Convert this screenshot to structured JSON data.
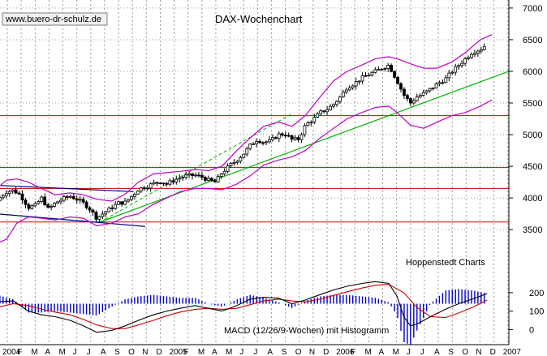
{
  "watermark": "www.buero-dr-schulz.de",
  "chart_data": {
    "type": "candlestick",
    "title": "DAX-Wochenchart",
    "source_label": "Hoppenstedt Charts",
    "y_axis": {
      "ticks": [
        3500,
        4000,
        4500,
        5000,
        5500,
        6000,
        6500,
        7000
      ],
      "labels": [
        "3500",
        "4000",
        "4500",
        "5000",
        "5500",
        "6000",
        "6500",
        "7000"
      ],
      "range": [
        2900,
        7050
      ]
    },
    "x_axis": {
      "range": [
        2004.0,
        2007.05
      ],
      "months": [
        {
          "t": 2004.0,
          "label": "2004"
        },
        {
          "t": 2004.083,
          "label": "F"
        },
        {
          "t": 2004.167,
          "label": "M"
        },
        {
          "t": 2004.25,
          "label": "A"
        },
        {
          "t": 2004.333,
          "label": "M"
        },
        {
          "t": 2004.417,
          "label": "J"
        },
        {
          "t": 2004.5,
          "label": "J"
        },
        {
          "t": 2004.583,
          "label": "A"
        },
        {
          "t": 2004.667,
          "label": "S"
        },
        {
          "t": 2004.75,
          "label": "O"
        },
        {
          "t": 2004.833,
          "label": "N"
        },
        {
          "t": 2004.917,
          "label": "D"
        },
        {
          "t": 2005.0,
          "label": "2005"
        },
        {
          "t": 2005.083,
          "label": "F"
        },
        {
          "t": 2005.167,
          "label": "M"
        },
        {
          "t": 2005.25,
          "label": "A"
        },
        {
          "t": 2005.333,
          "label": "M"
        },
        {
          "t": 2005.417,
          "label": "J"
        },
        {
          "t": 2005.5,
          "label": "J"
        },
        {
          "t": 2005.583,
          "label": "A"
        },
        {
          "t": 2005.667,
          "label": "S"
        },
        {
          "t": 2005.75,
          "label": "O"
        },
        {
          "t": 2005.833,
          "label": "N"
        },
        {
          "t": 2005.917,
          "label": "D"
        },
        {
          "t": 2006.0,
          "label": "2006"
        },
        {
          "t": 2006.083,
          "label": "F"
        },
        {
          "t": 2006.167,
          "label": "M"
        },
        {
          "t": 2006.25,
          "label": "A"
        },
        {
          "t": 2006.333,
          "label": "M"
        },
        {
          "t": 2006.417,
          "label": "J"
        },
        {
          "t": 2006.5,
          "label": "J"
        },
        {
          "t": 2006.583,
          "label": "A"
        },
        {
          "t": 2006.667,
          "label": "S"
        },
        {
          "t": 2006.75,
          "label": "O"
        },
        {
          "t": 2006.833,
          "label": "N"
        },
        {
          "t": 2006.917,
          "label": "D"
        },
        {
          "t": 2007.0,
          "label": "2007"
        }
      ]
    },
    "close_path": [
      [
        2003.98,
        3960
      ],
      [
        2004.04,
        4100
      ],
      [
        2004.08,
        4120
      ],
      [
        2004.12,
        4050
      ],
      [
        2004.17,
        3850
      ],
      [
        2004.21,
        3880
      ],
      [
        2004.25,
        4000
      ],
      [
        2004.29,
        3820
      ],
      [
        2004.33,
        3920
      ],
      [
        2004.38,
        3990
      ],
      [
        2004.42,
        4030
      ],
      [
        2004.46,
        3980
      ],
      [
        2004.5,
        3920
      ],
      [
        2004.54,
        3820
      ],
      [
        2004.58,
        3680
      ],
      [
        2004.62,
        3760
      ],
      [
        2004.67,
        3850
      ],
      [
        2004.71,
        3920
      ],
      [
        2004.75,
        3930
      ],
      [
        2004.79,
        4030
      ],
      [
        2004.83,
        4140
      ],
      [
        2004.88,
        4180
      ],
      [
        2004.92,
        4230
      ],
      [
        2004.96,
        4260
      ],
      [
        2005.0,
        4220
      ],
      [
        2005.04,
        4280
      ],
      [
        2005.08,
        4320
      ],
      [
        2005.12,
        4350
      ],
      [
        2005.17,
        4360
      ],
      [
        2005.21,
        4330
      ],
      [
        2005.25,
        4280
      ],
      [
        2005.29,
        4250
      ],
      [
        2005.33,
        4400
      ],
      [
        2005.38,
        4520
      ],
      [
        2005.42,
        4600
      ],
      [
        2005.46,
        4700
      ],
      [
        2005.5,
        4830
      ],
      [
        2005.54,
        4920
      ],
      [
        2005.58,
        4880
      ],
      [
        2005.62,
        4900
      ],
      [
        2005.67,
        5000
      ],
      [
        2005.71,
        5010
      ],
      [
        2005.75,
        4920
      ],
      [
        2005.79,
        4930
      ],
      [
        2005.83,
        5150
      ],
      [
        2005.88,
        5250
      ],
      [
        2005.92,
        5350
      ],
      [
        2005.96,
        5400
      ],
      [
        2006.0,
        5480
      ],
      [
        2006.04,
        5600
      ],
      [
        2006.08,
        5750
      ],
      [
        2006.12,
        5800
      ],
      [
        2006.17,
        5900
      ],
      [
        2006.21,
        5950
      ],
      [
        2006.25,
        6000
      ],
      [
        2006.29,
        6050
      ],
      [
        2006.33,
        6100
      ],
      [
        2006.38,
        5850
      ],
      [
        2006.42,
        5630
      ],
      [
        2006.46,
        5500
      ],
      [
        2006.5,
        5600
      ],
      [
        2006.54,
        5650
      ],
      [
        2006.58,
        5720
      ],
      [
        2006.62,
        5800
      ],
      [
        2006.67,
        5880
      ],
      [
        2006.71,
        6000
      ],
      [
        2006.75,
        6100
      ],
      [
        2006.79,
        6200
      ],
      [
        2006.83,
        6300
      ],
      [
        2006.88,
        6350
      ],
      [
        2006.92,
        6430
      ]
    ],
    "bollinger_upper": [
      [
        2003.98,
        4150
      ],
      [
        2004.04,
        4280
      ],
      [
        2004.1,
        4300
      ],
      [
        2004.17,
        4250
      ],
      [
        2004.25,
        4150
      ],
      [
        2004.33,
        4050
      ],
      [
        2004.42,
        4080
      ],
      [
        2004.5,
        4050
      ],
      [
        2004.58,
        3980
      ],
      [
        2004.67,
        3950
      ],
      [
        2004.75,
        4060
      ],
      [
        2004.83,
        4250
      ],
      [
        2004.92,
        4380
      ],
      [
        2005.0,
        4400
      ],
      [
        2005.08,
        4420
      ],
      [
        2005.17,
        4450
      ],
      [
        2005.25,
        4430
      ],
      [
        2005.33,
        4500
      ],
      [
        2005.42,
        4750
      ],
      [
        2005.5,
        4950
      ],
      [
        2005.58,
        5130
      ],
      [
        2005.67,
        5200
      ],
      [
        2005.75,
        5130
      ],
      [
        2005.83,
        5300
      ],
      [
        2005.92,
        5600
      ],
      [
        2006.0,
        5850
      ],
      [
        2006.08,
        6000
      ],
      [
        2006.17,
        6100
      ],
      [
        2006.25,
        6200
      ],
      [
        2006.33,
        6230
      ],
      [
        2006.38,
        6200
      ],
      [
        2006.46,
        6120
      ],
      [
        2006.54,
        6050
      ],
      [
        2006.62,
        6050
      ],
      [
        2006.71,
        6150
      ],
      [
        2006.79,
        6300
      ],
      [
        2006.88,
        6500
      ],
      [
        2006.95,
        6580
      ]
    ],
    "bollinger_lower": [
      [
        2003.98,
        3280
      ],
      [
        2004.04,
        3350
      ],
      [
        2004.1,
        3600
      ],
      [
        2004.17,
        3700
      ],
      [
        2004.25,
        3680
      ],
      [
        2004.33,
        3650
      ],
      [
        2004.42,
        3700
      ],
      [
        2004.5,
        3680
      ],
      [
        2004.58,
        3560
      ],
      [
        2004.67,
        3600
      ],
      [
        2004.75,
        3700
      ],
      [
        2004.83,
        3750
      ],
      [
        2004.92,
        3900
      ],
      [
        2005.0,
        4000
      ],
      [
        2005.08,
        4100
      ],
      [
        2005.17,
        4150
      ],
      [
        2005.25,
        4150
      ],
      [
        2005.33,
        4130
      ],
      [
        2005.42,
        4220
      ],
      [
        2005.5,
        4350
      ],
      [
        2005.58,
        4520
      ],
      [
        2005.67,
        4600
      ],
      [
        2005.75,
        4650
      ],
      [
        2005.83,
        4750
      ],
      [
        2005.92,
        4950
      ],
      [
        2006.0,
        5100
      ],
      [
        2006.08,
        5250
      ],
      [
        2006.17,
        5350
      ],
      [
        2006.25,
        5430
      ],
      [
        2006.33,
        5450
      ],
      [
        2006.38,
        5350
      ],
      [
        2006.46,
        5150
      ],
      [
        2006.54,
        5100
      ],
      [
        2006.62,
        5200
      ],
      [
        2006.71,
        5300
      ],
      [
        2006.79,
        5350
      ],
      [
        2006.88,
        5450
      ],
      [
        2006.95,
        5550
      ]
    ],
    "horizontal_levels": [
      3620,
      4150,
      4480,
      5300
    ],
    "green_trend": {
      "from": [
        2004.6,
        3620
      ],
      "to": [
        2007.05,
        6000
      ],
      "dashed_from": [
        2004.6,
        3620
      ],
      "dashed_to": [
        2005.75,
        5330
      ]
    },
    "blue_channel": {
      "upper": [
        [
          2003.98,
          4200
        ],
        [
          2004.8,
          4100
        ]
      ],
      "lower": [
        [
          2003.98,
          3750
        ],
        [
          2004.87,
          3550
        ]
      ]
    },
    "macd": {
      "label": "MACD (12/26/9-Wochen) mit Histogramm",
      "y_ticks": [
        0,
        100,
        200
      ],
      "y_labels": [
        "0",
        "100",
        "200"
      ],
      "y_range": [
        -60,
        270
      ],
      "macd_line": [
        [
          2003.98,
          150
        ],
        [
          2004.08,
          155
        ],
        [
          2004.17,
          100
        ],
        [
          2004.25,
          80
        ],
        [
          2004.33,
          70
        ],
        [
          2004.42,
          50
        ],
        [
          2004.5,
          20
        ],
        [
          2004.58,
          -15
        ],
        [
          2004.67,
          -5
        ],
        [
          2004.75,
          20
        ],
        [
          2004.83,
          50
        ],
        [
          2004.92,
          80
        ],
        [
          2005.0,
          100
        ],
        [
          2005.08,
          115
        ],
        [
          2005.17,
          130
        ],
        [
          2005.25,
          115
        ],
        [
          2005.33,
          100
        ],
        [
          2005.42,
          130
        ],
        [
          2005.5,
          165
        ],
        [
          2005.58,
          175
        ],
        [
          2005.67,
          170
        ],
        [
          2005.75,
          140
        ],
        [
          2005.83,
          160
        ],
        [
          2005.92,
          190
        ],
        [
          2006.0,
          215
        ],
        [
          2006.08,
          235
        ],
        [
          2006.17,
          250
        ],
        [
          2006.25,
          260
        ],
        [
          2006.33,
          250
        ],
        [
          2006.38,
          180
        ],
        [
          2006.42,
          70
        ],
        [
          2006.46,
          20
        ],
        [
          2006.5,
          30
        ],
        [
          2006.58,
          70
        ],
        [
          2006.67,
          110
        ],
        [
          2006.75,
          140
        ],
        [
          2006.83,
          165
        ],
        [
          2006.92,
          195
        ]
      ],
      "signal_line": [
        [
          2003.98,
          120
        ],
        [
          2004.08,
          140
        ],
        [
          2004.17,
          130
        ],
        [
          2004.25,
          110
        ],
        [
          2004.33,
          95
        ],
        [
          2004.42,
          80
        ],
        [
          2004.5,
          55
        ],
        [
          2004.58,
          25
        ],
        [
          2004.67,
          5
        ],
        [
          2004.75,
          5
        ],
        [
          2004.83,
          25
        ],
        [
          2004.92,
          50
        ],
        [
          2005.0,
          75
        ],
        [
          2005.08,
          95
        ],
        [
          2005.17,
          110
        ],
        [
          2005.25,
          115
        ],
        [
          2005.33,
          110
        ],
        [
          2005.42,
          115
        ],
        [
          2005.5,
          135
        ],
        [
          2005.58,
          155
        ],
        [
          2005.67,
          165
        ],
        [
          2005.75,
          155
        ],
        [
          2005.83,
          150
        ],
        [
          2005.92,
          165
        ],
        [
          2006.0,
          185
        ],
        [
          2006.08,
          205
        ],
        [
          2006.17,
          225
        ],
        [
          2006.25,
          240
        ],
        [
          2006.33,
          245
        ],
        [
          2006.42,
          200
        ],
        [
          2006.5,
          120
        ],
        [
          2006.58,
          70
        ],
        [
          2006.67,
          65
        ],
        [
          2006.75,
          90
        ],
        [
          2006.83,
          120
        ],
        [
          2006.92,
          160
        ]
      ]
    }
  },
  "colors": {
    "background": "#ffffff",
    "grid": "#9a9a9a",
    "candle": "#000000",
    "bollinger": "#c000c0",
    "level_line": "#cc0000",
    "trend": "#00b000",
    "channel": "#000080",
    "macd_line": "#000000",
    "signal_line": "#cc0000",
    "histogram": "#0000cc",
    "watermark_bg": "#f0f0f0"
  }
}
